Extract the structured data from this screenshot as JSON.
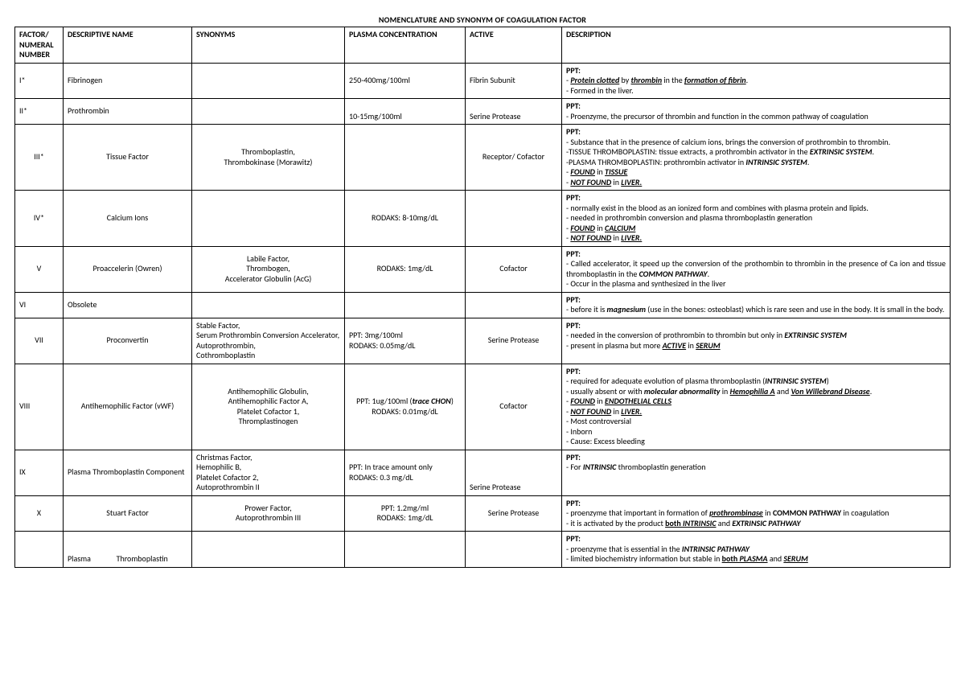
{
  "title": "NOMENCLATURE AND SYNONYM OF COAGULATION FACTOR",
  "columns": [
    "FACTOR/ NUMERAL NUMBER",
    "DESCRIPTIVE NAME",
    "SYNONYMS",
    "PLASMA CONCENTRATION",
    "ACTIVE",
    "DESCRIPTION"
  ],
  "rows": [
    {
      "factor": "I*",
      "name": "Fibrinogen",
      "name_align": "left",
      "synonyms_html": "",
      "plasma": "250-400mg/100ml",
      "plasma_align": "left",
      "active": "Fibrin Subunit",
      "active_align": "left",
      "desc_html": "<p><span class='b'>PPT:</span></p><p>- <span class='biu'>Protein clotted</span> by <span class='biu'>thrombin</span> in the <span class='biu'>formation of fibrin</span>.</p><p>- Formed in the liver.</p>"
    },
    {
      "factor": "II*",
      "name": "Prothrombin",
      "name_align": "left",
      "synonyms_html": "",
      "plasma": "10-15mg/100ml",
      "plasma_align": "left",
      "plasma_valign": "bottom",
      "active": "Serine Protease",
      "active_align": "left",
      "active_valign": "bottom",
      "desc_html": "<p><span class='b'>PPT:</span></p><p style='text-align:justify'>- Proenzyme, the precursor of thrombin and function in the common pathway of coagulation</p>"
    },
    {
      "factor": "III*",
      "factor_align": "center",
      "name": "Tissue Factor",
      "name_align": "center",
      "synonyms_html": "<div style='text-align:center'>Thromboplastin,<br>Thrombokinase (Morawitz)</div>",
      "plasma": "",
      "active": "Receptor/ Cofactor",
      "active_align": "center",
      "desc_html": "<p><span class='b'>PPT:</span></p><p style='text-align:justify'>- Substance that in the presence of calcium ions, brings the conversion of prothrombin to thrombin.</p><p style='text-align:justify'>-TISSUE THROMBOPLASTIN: tissue extracts, a prothrombin activator in the <span class='bi'>EXTRINSIC SYSTEM</span>.</p><p>-PLASMA THROMBOPLASTIN: prothrombin activator in <span class='bi'>INTRINSIC SYSTEM</span>.</p><p>- <span class='biu'>FOUND</span> in <span class='biu'>TISSUE</span></p><p>- <span class='biu'>NOT FOUND</span> in <span class='biu'>LIVER.</span></p>"
    },
    {
      "factor": "IV*",
      "factor_align": "center",
      "name": "Calcium Ions",
      "name_align": "center",
      "synonyms_html": "",
      "plasma": "RODAKS: 8-10mg/dL",
      "plasma_align": "center",
      "active": "",
      "desc_html": "<p><span class='b'>PPT:</span></p><p style='text-align:justify'>- normally exist in the blood as an ionized form and combines with plasma protein and lipids.</p><p>- needed in prothrombin conversion and plasma thromboplastin generation</p><p>- <span class='biu'>FOUND</span> in <span class='biu'>CALCIUM</span></p><p>- <span class='biu'>NOT FOUND</span> in <span class='biu'>LIVER.</span></p>"
    },
    {
      "factor": "V",
      "factor_align": "center",
      "name": "Proaccelerin (Owren)",
      "name_align": "center",
      "synonyms_html": "<div style='text-align:center'>Labile Factor,<br>Thrombogen,<br>Accelerator Globulin (AcG)</div>",
      "plasma": "RODAKS: 1mg/dL",
      "plasma_align": "center",
      "active": "Cofactor",
      "active_align": "center",
      "desc_html": "<p><span class='b'>PPT:</span></p><p style='text-align:justify'>- Called accelerator, it speed up the conversion of the prothombin to thrombin in the presence of Ca ion and tissue thromboplastin in the <span class='bi'>COMMON PATHWAY</span>.</p><p>- Occur in the plasma and synthesized in the liver</p>"
    },
    {
      "factor": "VI",
      "name": "Obsolete",
      "name_align": "left",
      "synonyms_html": "",
      "plasma": "",
      "active": "",
      "desc_html": "<p><span class='b'>PPT:</span></p><p style='text-align:justify'>- before it is <span class='bi'>magnesium</span> (use in the bones: osteoblast) which is rare seen and use in the body. It is small in the body.</p>"
    },
    {
      "factor": "VII",
      "factor_align": "center",
      "name": "Proconvertin",
      "name_align": "center",
      "synonyms_html": "<div style='text-align:justify'>Stable Factor,<br>Serum Prothrombin Conversion Accelerator,<br>Autoprothrombin,<br>Cothromboplastin</div>",
      "plasma_html": "PPT: 3mg/100ml<br>RODAKS: 0.05mg/dL",
      "plasma_align": "left",
      "active": "Serine Protease",
      "active_align": "center",
      "desc_html": "<p><span class='b'>PPT:</span></p><p>- needed in the conversion of prothrombin to thrombin but only in <span class='bi'>EXTRINSIC SYSTEM</span></p><p>- present in plasma but more <span class='biu'>ACTIVE</span> in <span class='biu'>SERUM</span></p>"
    },
    {
      "factor": "VIII",
      "name": "Antihemophilic Factor (vWF)",
      "name_align": "center",
      "synonyms_html": "<div style='text-align:center'>Antihemophilic Globulin,<br>Antihemophilic Factor A,<br>Platelet Cofactor 1,<br>Thromplastinogen</div>",
      "plasma_html": "<div style='text-align:center'>PPT: 1ug/100ml (<span class='bi'>trace CHON</span>)<br>RODAKS: 0.01mg/dL</div>",
      "active": "Cofactor",
      "active_align": "center",
      "desc_html": "<p><span class='b'>PPT:</span></p><p>- required for adequate evolution of plasma thromboplastin (<span class='bi'>INTRINSIC SYSTEM</span>)</p><p style='text-align:justify'>- usually absent or with <span class='bi'>molecular abnormality</span> in <span class='biu'>Hemophilia A</span> and <span class='biu'>Von Willebrand Disease</span>.</p><p>- <span class='biu'>FOUND</span> in <span class='biu'>ENDOTHELIAL CELLS</span></p><p>- <span class='biu'>NOT FOUND</span> in <span class='biu'>LIVER.</span></p><p>- Most controversial</p><p>- Inborn</p><p>- Cause: Excess bleeding</p>"
    },
    {
      "factor": "IX",
      "name_html": "<div style='text-align:justify'>Plasma Thromboplastin Component</div>",
      "synonyms_html": "Christmas Factor,<br>Hemophilic B,<br>Platelet Cofactor 2,<br>Autoprothrombin II",
      "plasma_html": "PPT: In trace amount only<br>RODAKS: 0.3 mg/dL",
      "plasma_align": "left",
      "active": "Serine Protease",
      "active_align": "left",
      "active_valign": "bottom",
      "desc_html": "<p><span class='b'>PPT:</span></p><p>- For <span class='bi'>INTRINSIC</span> thromboplastin generation</p>"
    },
    {
      "factor": "X",
      "factor_align": "center",
      "name": "Stuart Factor",
      "name_align": "center",
      "synonyms_html": "<div style='text-align:center'>Prower Factor,<br>Autoprothrombin III</div>",
      "plasma_html": "<div style='text-align:center'>PPT: 1.2mg/ml<br>RODAKS: 1mg/dL</div>",
      "active": "Serine Protease",
      "active_align": "center",
      "desc_html": "<p><span class='b'>PPT:</span></p><p style='text-align:justify'>- proenzyme that important in formation of <span class='biu'>prothrombinase</span> in <span class='b'>COMMON PATHWAY</span> in coagulation</p><p>- it is activated by the product <span class='bu'>both <span class='i'>INTRINSIC</span></span> and <span class='bi'>EXTRINSIC PATHWAY</span></p>"
    },
    {
      "factor": "",
      "name_html": "<div style='text-align:justify'>Plasma &nbsp;&nbsp;&nbsp;&nbsp;&nbsp;&nbsp;&nbsp;&nbsp;&nbsp;&nbsp;&nbsp;&nbsp; Thromboplastin</div>",
      "name_valign": "bottom",
      "synonyms_html": "",
      "plasma": "",
      "active": "",
      "desc_html": "<p><span class='b'>PPT:</span></p><p>- proenzyme that is essential in the <span class='bi'>INTRINSIC PATHWAY</span></p><p>- limited biochemistry information but stable in <span class='bu'>both <span class='i'>PLASMA</span></span> and <span class='biu'>SERUM</span></p>"
    }
  ]
}
